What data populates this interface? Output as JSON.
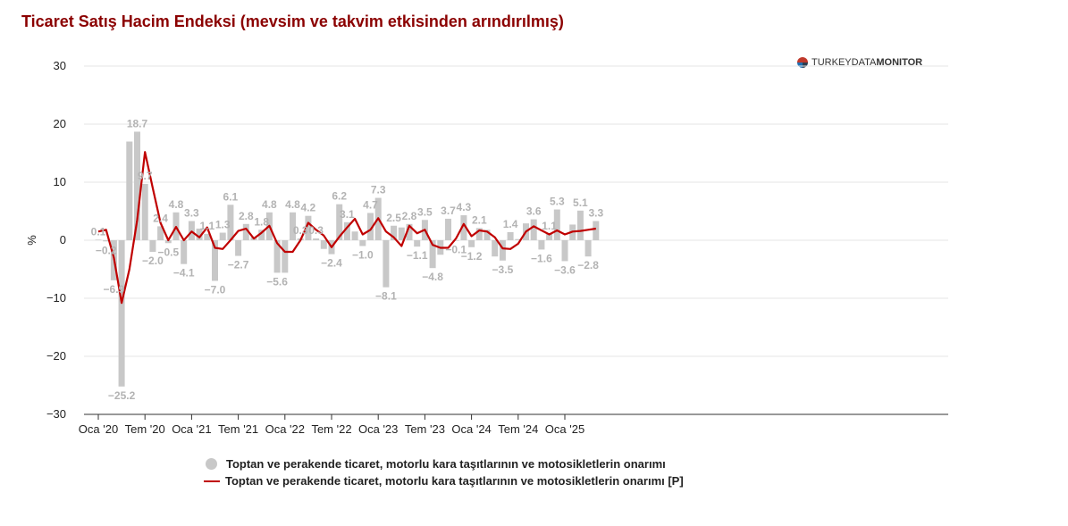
{
  "title": "Ticaret Satış Hacim Endeksi (mevsim ve takvim etkisinden arındırılmış)",
  "brand": {
    "prefix": "TURKEY",
    "mid": "DATA",
    "suffix": "MONITOR"
  },
  "colors": {
    "bar": "#c8c8c8",
    "line": "#c00000",
    "title": "#8b0000",
    "label": "#b3b3b3"
  },
  "chart_data": {
    "type": "bar",
    "ylabel": "%",
    "ylim": [
      -30,
      30
    ],
    "yticks": [
      30,
      20,
      10,
      0,
      -10,
      -20,
      -30
    ],
    "yticklabels": [
      "30",
      "20",
      "10",
      "0",
      "−10",
      "−20",
      "−30"
    ],
    "xticklabels": [
      "Oca '20",
      "Tem '20",
      "Oca '21",
      "Tem '21",
      "Oca '22",
      "Tem '22",
      "Oca '23",
      "Tem '23",
      "Oca '24",
      "Tem '24",
      "Oca '25"
    ],
    "xtick_indices": [
      0,
      6,
      12,
      18,
      24,
      30,
      36,
      42,
      48,
      54,
      60
    ],
    "series": [
      {
        "name": "Toptan ve perakende ticaret, motorlu kara taşıtlarının ve motosikletlerin onarımı",
        "type": "bar",
        "values": [
          0.1,
          -0.2,
          -6.9,
          -25.2,
          17.0,
          18.7,
          9.7,
          -2.0,
          2.4,
          -0.5,
          4.8,
          -4.1,
          3.3,
          2.0,
          1.1,
          -7.0,
          1.3,
          6.1,
          -2.7,
          2.8,
          0.5,
          1.8,
          4.8,
          -5.6,
          -5.6,
          4.8,
          0.3,
          4.2,
          0.3,
          -1.5,
          -2.4,
          6.2,
          3.1,
          1.5,
          -1.0,
          4.7,
          7.3,
          -8.1,
          2.5,
          2.2,
          2.8,
          -1.1,
          3.5,
          -4.8,
          -2.5,
          3.7,
          -0.1,
          4.3,
          -1.2,
          2.1,
          1.8,
          -2.8,
          -3.5,
          1.4,
          0.2,
          2.9,
          3.6,
          -1.6,
          1.1,
          5.3,
          -3.6,
          2.7,
          5.1,
          -2.8,
          3.3
        ],
        "labels": [
          "0.1",
          "−0.2",
          "−6.9",
          "−25.2",
          "",
          "18.7",
          "9.7",
          "−2.0",
          "2.4",
          "−0.5",
          "4.8",
          "−4.1",
          "3.3",
          "",
          "1.1",
          "−7.0",
          "1.3",
          "6.1",
          "−2.7",
          "2.8",
          "",
          "1.8",
          "4.8",
          "−5.6",
          "",
          "4.8",
          "0.3",
          "4.2",
          "0.3",
          "",
          "−2.4",
          "6.2",
          "3.1",
          "",
          "−1.0",
          "4.7",
          "7.3",
          "−8.1",
          "2.5",
          "",
          "2.8",
          "−1.1",
          "3.5",
          "−4.8",
          "",
          "3.7",
          "−0.1",
          "4.3",
          "−1.2",
          "2.1",
          "",
          "",
          "−3.5",
          "1.4",
          "",
          "",
          "3.6",
          "−1.6",
          "1.1",
          "5.3",
          "−3.6",
          "",
          "5.1",
          "−2.8",
          "3.3"
        ]
      },
      {
        "name": "Toptan ve perakende ticaret, motorlu kara taşıtlarının ve motosikletlerin onarımı [P]",
        "type": "line",
        "values": [
          1.5,
          1.8,
          -3.0,
          -10.8,
          -5.0,
          3.5,
          15.2,
          9.0,
          3.0,
          0.0,
          2.3,
          0.0,
          1.5,
          0.5,
          2.2,
          -1.3,
          -1.5,
          0.0,
          1.6,
          2.0,
          0.3,
          1.3,
          2.5,
          -0.5,
          -2.0,
          -2.0,
          0.0,
          3.0,
          1.8,
          0.8,
          -1.2,
          0.6,
          2.2,
          3.7,
          1.0,
          1.8,
          3.8,
          1.5,
          0.5,
          -1.0,
          2.5,
          1.2,
          1.8,
          -0.8,
          -1.3,
          -1.3,
          0.3,
          2.8,
          0.7,
          1.7,
          1.5,
          0.5,
          -1.4,
          -1.5,
          -0.6,
          1.5,
          2.4,
          1.7,
          1.0,
          1.7,
          1.0,
          1.5,
          1.6,
          1.8,
          2.0
        ]
      }
    ]
  },
  "legend": {
    "bar_label": "Toptan ve perakende ticaret, motorlu kara taşıtlarının ve motosikletlerin onarımı",
    "line_label": "Toptan ve perakende ticaret, motorlu kara taşıtlarının ve motosikletlerin onarımı [P]"
  }
}
